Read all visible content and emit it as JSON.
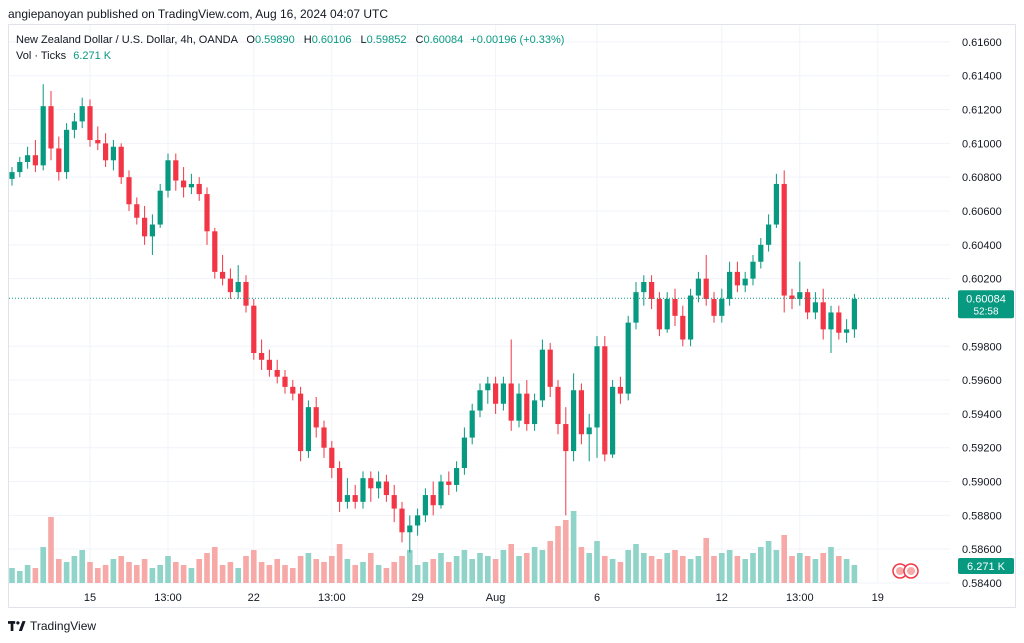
{
  "header": {
    "publisher_line": "angiepanoyan published on TradingView.com, Aug 16, 2024 04:07 UTC"
  },
  "legend": {
    "symbol": "New Zealand Dollar / U.S. Dollar, 4h, OANDA",
    "o_label": "O",
    "o_value": "0.59890",
    "h_label": "H",
    "h_value": "0.60106",
    "l_label": "L",
    "l_value": "0.59852",
    "c_label": "C",
    "c_value": "0.60084",
    "change": "+0.00196 (+0.33%)",
    "vol_label": "Vol · Ticks",
    "vol_value": "6.271 K"
  },
  "footer": {
    "brand": "TradingView"
  },
  "colors": {
    "up": "#089981",
    "down": "#f23645",
    "vol_up": "#8fd3c9",
    "vol_down": "#f7a9a7",
    "grid": "#f0f3fa",
    "axis_text": "#131722",
    "price_line": "#089981"
  },
  "chart_data": {
    "type": "candlestick",
    "interval": "4h",
    "ylim": [
      0.584,
      0.617
    ],
    "y_ticks": [
      "0.61600",
      "0.61400",
      "0.61200",
      "0.61000",
      "0.60800",
      "0.60600",
      "0.60400",
      "0.60200",
      "0.59800",
      "0.59600",
      "0.59400",
      "0.59200",
      "0.59000",
      "0.58800",
      "0.58600",
      "0.58400"
    ],
    "x_ticks": [
      {
        "label": "15",
        "index": 10
      },
      {
        "label": "13:00",
        "index": 20
      },
      {
        "label": "22",
        "index": 31
      },
      {
        "label": "13:00",
        "index": 41
      },
      {
        "label": "29",
        "index": 52
      },
      {
        "label": "Aug",
        "index": 62
      },
      {
        "label": "6",
        "index": 75
      },
      {
        "label": "12",
        "index": 91
      },
      {
        "label": "13:00",
        "index": 101
      },
      {
        "label": "19",
        "index": 111
      }
    ],
    "last_price": {
      "value": 0.60084,
      "label": "0.60084",
      "countdown": "52:58"
    },
    "volume_label": "6.271 K",
    "candles": [
      [
        0.6079,
        0.6086,
        0.6075,
        0.6083,
        5
      ],
      [
        0.6083,
        0.6092,
        0.608,
        0.6089,
        4
      ],
      [
        0.6089,
        0.6098,
        0.6085,
        0.6093,
        6
      ],
      [
        0.6093,
        0.6102,
        0.6083,
        0.6087,
        5
      ],
      [
        0.6087,
        0.6135,
        0.6084,
        0.6122,
        12
      ],
      [
        0.6122,
        0.6131,
        0.609,
        0.6097,
        22
      ],
      [
        0.6097,
        0.6104,
        0.6078,
        0.6083,
        8
      ],
      [
        0.6083,
        0.6112,
        0.6079,
        0.6108,
        7
      ],
      [
        0.6108,
        0.6118,
        0.6103,
        0.6113,
        9
      ],
      [
        0.6113,
        0.6127,
        0.6109,
        0.6122,
        11
      ],
      [
        0.6122,
        0.6126,
        0.6098,
        0.6102,
        7
      ],
      [
        0.6102,
        0.611,
        0.6096,
        0.61,
        5
      ],
      [
        0.61,
        0.6106,
        0.6086,
        0.609,
        6
      ],
      [
        0.609,
        0.6102,
        0.6084,
        0.6098,
        8
      ],
      [
        0.6098,
        0.61,
        0.6076,
        0.608,
        9
      ],
      [
        0.608,
        0.6084,
        0.606,
        0.6064,
        7
      ],
      [
        0.6064,
        0.6068,
        0.6052,
        0.6056,
        6
      ],
      [
        0.6056,
        0.6063,
        0.604,
        0.6045,
        8
      ],
      [
        0.6045,
        0.6058,
        0.6034,
        0.6052,
        5
      ],
      [
        0.6052,
        0.6076,
        0.605,
        0.6072,
        6
      ],
      [
        0.6072,
        0.6094,
        0.6068,
        0.609,
        9
      ],
      [
        0.609,
        0.6094,
        0.6072,
        0.6078,
        7
      ],
      [
        0.6078,
        0.6086,
        0.6068,
        0.6074,
        6
      ],
      [
        0.6074,
        0.6082,
        0.607,
        0.6076,
        5
      ],
      [
        0.6076,
        0.608,
        0.6066,
        0.607,
        8
      ],
      [
        0.607,
        0.6074,
        0.604,
        0.6048,
        10
      ],
      [
        0.6048,
        0.605,
        0.602,
        0.6024,
        12
      ],
      [
        0.6024,
        0.6034,
        0.6016,
        0.602,
        6
      ],
      [
        0.602,
        0.6026,
        0.6008,
        0.6012,
        7
      ],
      [
        0.6012,
        0.6028,
        0.6008,
        0.6018,
        5
      ],
      [
        0.6018,
        0.6022,
        0.6,
        0.6004,
        9
      ],
      [
        0.6004,
        0.6008,
        0.5972,
        0.5976,
        11
      ],
      [
        0.5976,
        0.5984,
        0.5966,
        0.5972,
        7
      ],
      [
        0.5972,
        0.5978,
        0.5962,
        0.5966,
        6
      ],
      [
        0.5966,
        0.5972,
        0.5958,
        0.5962,
        8
      ],
      [
        0.5962,
        0.5966,
        0.5952,
        0.5956,
        6
      ],
      [
        0.5956,
        0.596,
        0.5948,
        0.5952,
        5
      ],
      [
        0.5952,
        0.5956,
        0.5912,
        0.5918,
        9
      ],
      [
        0.5918,
        0.5948,
        0.5914,
        0.5944,
        10
      ],
      [
        0.5944,
        0.595,
        0.5926,
        0.5932,
        8
      ],
      [
        0.5932,
        0.5936,
        0.5914,
        0.592,
        7
      ],
      [
        0.592,
        0.5924,
        0.5902,
        0.5908,
        9
      ],
      [
        0.5908,
        0.5912,
        0.5882,
        0.5888,
        13
      ],
      [
        0.5888,
        0.5902,
        0.5884,
        0.5892,
        8
      ],
      [
        0.5892,
        0.5898,
        0.5884,
        0.5888,
        6
      ],
      [
        0.5888,
        0.5906,
        0.5884,
        0.5902,
        7
      ],
      [
        0.5902,
        0.5906,
        0.5888,
        0.5896,
        10
      ],
      [
        0.5896,
        0.5906,
        0.589,
        0.59,
        6
      ],
      [
        0.59,
        0.5904,
        0.5888,
        0.5892,
        5
      ],
      [
        0.5892,
        0.5898,
        0.5876,
        0.5884,
        7
      ],
      [
        0.5884,
        0.5888,
        0.5864,
        0.587,
        9
      ],
      [
        0.587,
        0.588,
        0.5858,
        0.5874,
        11
      ],
      [
        0.5874,
        0.5884,
        0.5868,
        0.588,
        6
      ],
      [
        0.588,
        0.5896,
        0.5876,
        0.5892,
        7
      ],
      [
        0.5892,
        0.59,
        0.588,
        0.5886,
        8
      ],
      [
        0.5886,
        0.5904,
        0.5884,
        0.59,
        10
      ],
      [
        0.59,
        0.5906,
        0.5892,
        0.5898,
        7
      ],
      [
        0.5898,
        0.5912,
        0.5894,
        0.5908,
        9
      ],
      [
        0.5908,
        0.5932,
        0.5904,
        0.5926,
        11
      ],
      [
        0.5926,
        0.5946,
        0.5922,
        0.5942,
        8
      ],
      [
        0.5942,
        0.5958,
        0.5938,
        0.5954,
        10
      ],
      [
        0.5954,
        0.5962,
        0.5946,
        0.5958,
        9
      ],
      [
        0.5958,
        0.5962,
        0.594,
        0.5946,
        8
      ],
      [
        0.5946,
        0.5962,
        0.5942,
        0.5958,
        11
      ],
      [
        0.5958,
        0.5984,
        0.593,
        0.5936,
        13
      ],
      [
        0.5936,
        0.5958,
        0.5932,
        0.5952,
        9
      ],
      [
        0.5952,
        0.596,
        0.593,
        0.5934,
        10
      ],
      [
        0.5934,
        0.5952,
        0.593,
        0.5948,
        12
      ],
      [
        0.5948,
        0.5984,
        0.5944,
        0.5978,
        11
      ],
      [
        0.5978,
        0.5982,
        0.595,
        0.5956,
        14
      ],
      [
        0.5956,
        0.596,
        0.5928,
        0.5934,
        19
      ],
      [
        0.5934,
        0.5944,
        0.588,
        0.5918,
        21
      ],
      [
        0.5918,
        0.5964,
        0.5912,
        0.5954,
        24
      ],
      [
        0.5954,
        0.5958,
        0.5922,
        0.5928,
        12
      ],
      [
        0.5928,
        0.594,
        0.5912,
        0.5932,
        10
      ],
      [
        0.5932,
        0.5986,
        0.5914,
        0.598,
        14
      ],
      [
        0.598,
        0.5986,
        0.5912,
        0.5916,
        9
      ],
      [
        0.5916,
        0.596,
        0.5914,
        0.5956,
        8
      ],
      [
        0.5956,
        0.5962,
        0.5946,
        0.5952,
        7
      ],
      [
        0.5952,
        0.5998,
        0.5948,
        0.5994,
        11
      ],
      [
        0.5994,
        0.6018,
        0.599,
        0.6012,
        13
      ],
      [
        0.6012,
        0.6022,
        0.6004,
        0.6018,
        10
      ],
      [
        0.6018,
        0.6022,
        0.6002,
        0.6008,
        9
      ],
      [
        0.6008,
        0.6012,
        0.5986,
        0.599,
        8
      ],
      [
        0.599,
        0.6012,
        0.5988,
        0.6008,
        10
      ],
      [
        0.6008,
        0.6014,
        0.5992,
        0.5998,
        11
      ],
      [
        0.5998,
        0.6004,
        0.598,
        0.5984,
        9
      ],
      [
        0.5984,
        0.6014,
        0.598,
        0.601,
        8
      ],
      [
        0.601,
        0.6024,
        0.6006,
        0.602,
        9
      ],
      [
        0.602,
        0.6034,
        0.6004,
        0.6008,
        15
      ],
      [
        0.6008,
        0.6012,
        0.5994,
        0.5998,
        9
      ],
      [
        0.5998,
        0.6014,
        0.5994,
        0.6008,
        10
      ],
      [
        0.6008,
        0.603,
        0.6004,
        0.6024,
        11
      ],
      [
        0.6024,
        0.603,
        0.6012,
        0.6016,
        9
      ],
      [
        0.6016,
        0.6024,
        0.6012,
        0.602,
        8
      ],
      [
        0.602,
        0.6034,
        0.6016,
        0.603,
        10
      ],
      [
        0.603,
        0.6044,
        0.6026,
        0.604,
        12
      ],
      [
        0.604,
        0.6058,
        0.6036,
        0.6052,
        14
      ],
      [
        0.6052,
        0.6082,
        0.605,
        0.6076,
        11
      ],
      [
        0.6076,
        0.6084,
        0.6,
        0.601,
        16
      ],
      [
        0.601,
        0.6014,
        0.6002,
        0.6008,
        9
      ],
      [
        0.6008,
        0.603,
        0.6004,
        0.6012,
        10
      ],
      [
        0.6012,
        0.6014,
        0.5996,
        0.6,
        9
      ],
      [
        0.6,
        0.6012,
        0.5996,
        0.6006,
        8
      ],
      [
        0.6006,
        0.6014,
        0.5984,
        0.599,
        10
      ],
      [
        0.599,
        0.6004,
        0.5976,
        0.6,
        12
      ],
      [
        0.6,
        0.6004,
        0.5984,
        0.5988,
        9
      ],
      [
        0.5988,
        0.5996,
        0.5982,
        0.599,
        8
      ],
      [
        0.599,
        0.6011,
        0.5985,
        0.6008,
        6
      ]
    ]
  }
}
